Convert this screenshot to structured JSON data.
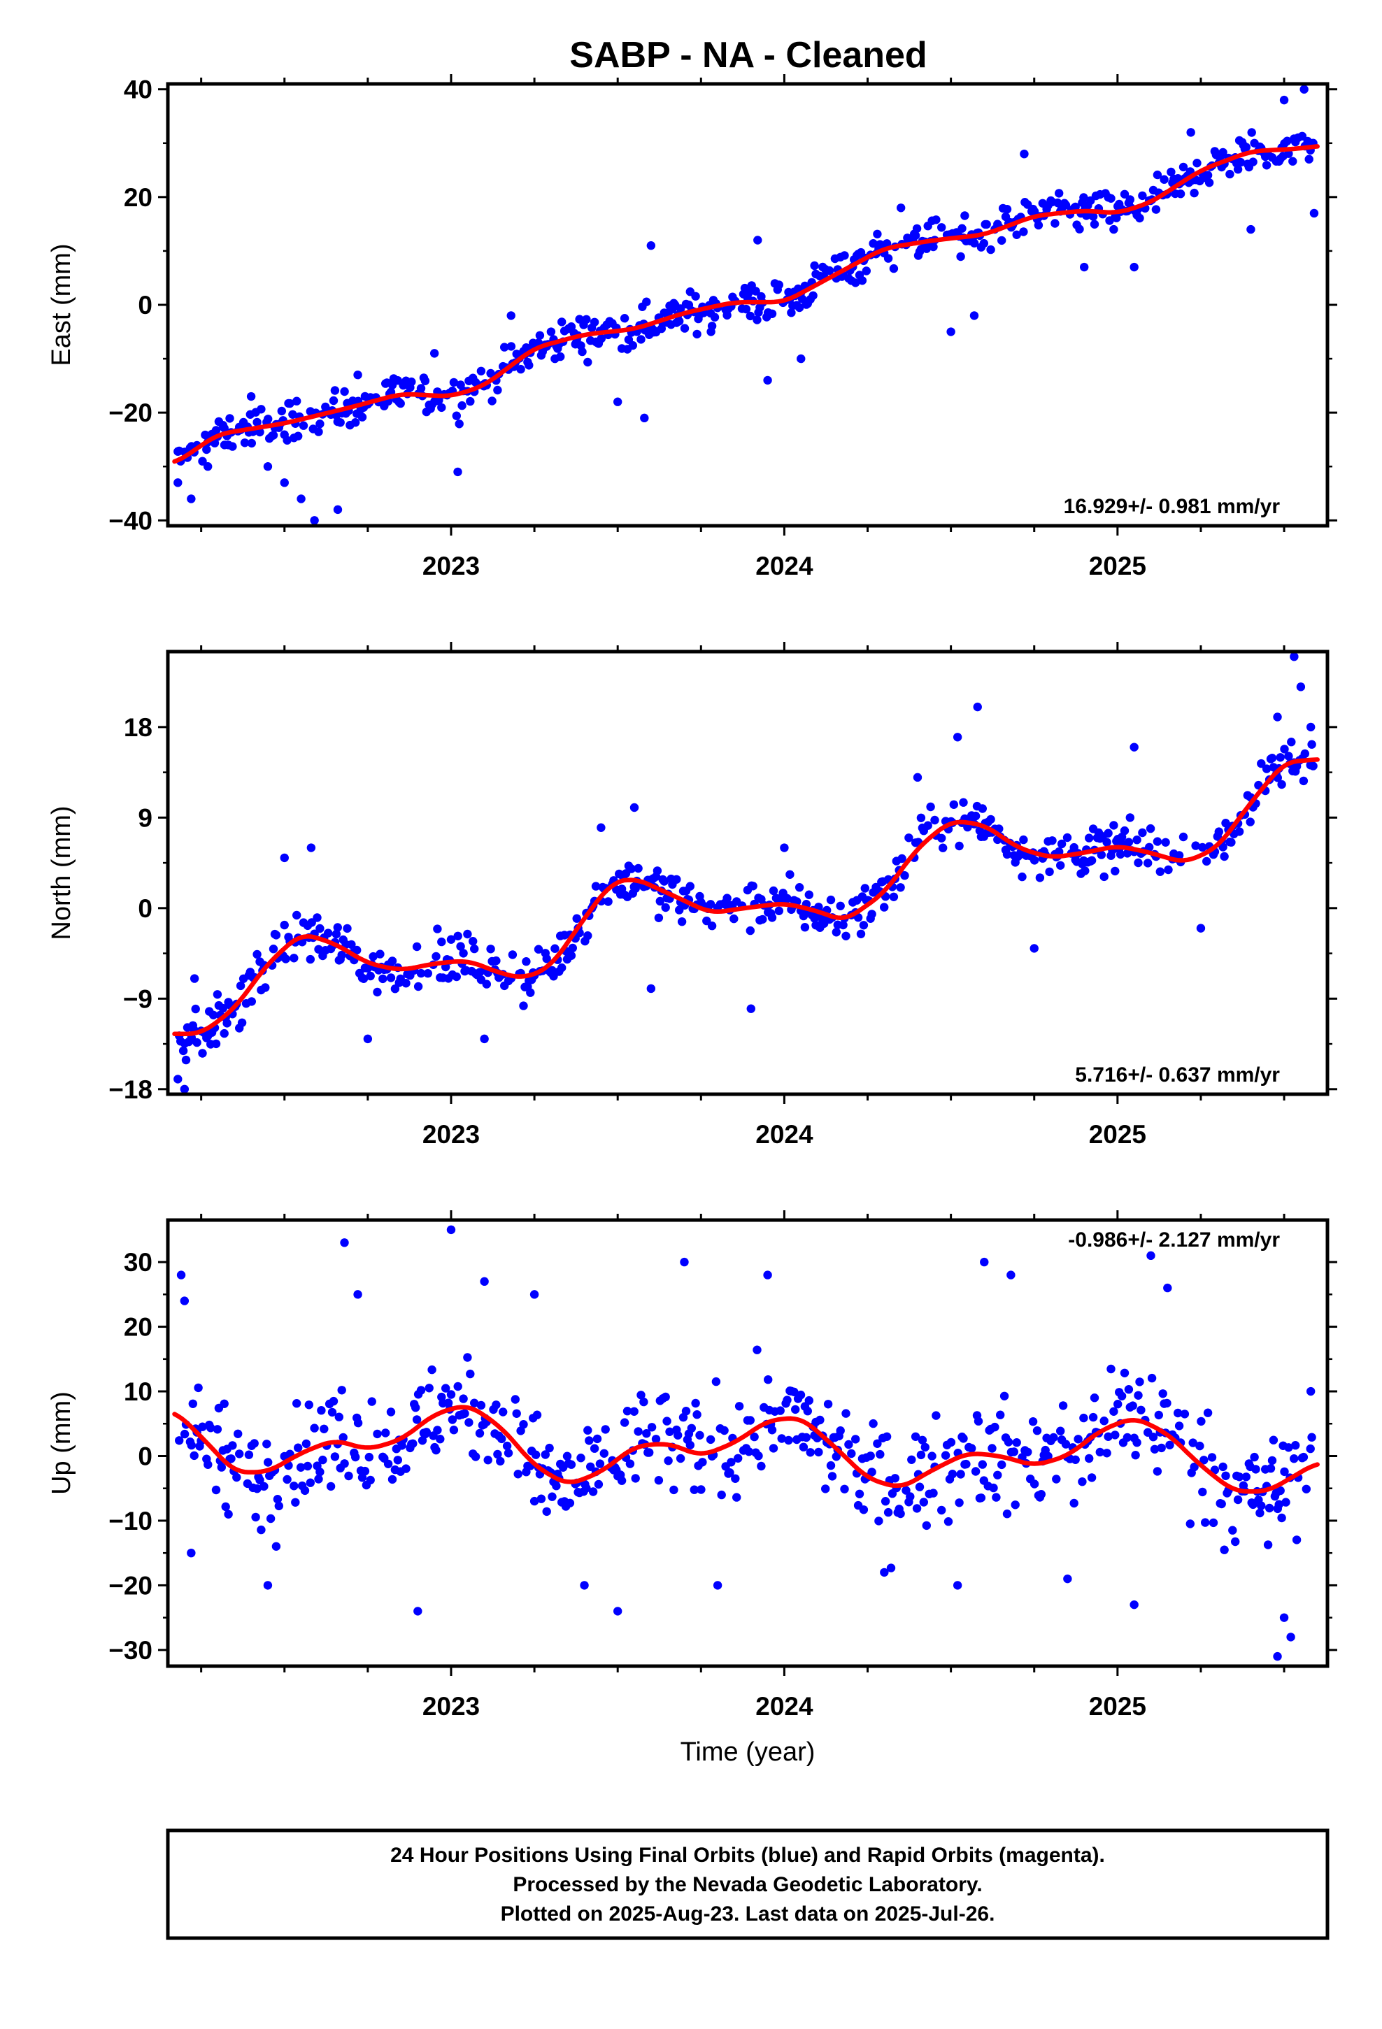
{
  "title": "SABP  - NA - Cleaned",
  "colors": {
    "points": "#0000ff",
    "fit": "#ff0000",
    "frame": "#000000"
  },
  "chart_data": [
    {
      "type": "scatter",
      "component": "east",
      "ylabel": "East (mm)",
      "xlabel": "",
      "xlim": [
        2022.15,
        2025.63
      ],
      "ylim": [
        -41,
        41
      ],
      "yticks": [
        "-40",
        "-20",
        "0",
        "20",
        "40"
      ],
      "ytick_values": [
        -40,
        -20,
        0,
        20,
        40
      ],
      "xticks": [
        "2023",
        "2024",
        "2025"
      ],
      "xtick_values": [
        2023,
        2024,
        2025
      ],
      "rate_label": "16.929+/- 0.981 mm/yr",
      "rate_position": "bottom-right",
      "fit": {
        "x": [
          2022.17,
          2022.3,
          2022.5,
          2022.7,
          2022.85,
          2023.0,
          2023.1,
          2023.25,
          2023.4,
          2023.55,
          2023.7,
          2023.85,
          2024.0,
          2024.15,
          2024.3,
          2024.45,
          2024.6,
          2024.75,
          2024.9,
          2025.0,
          2025.1,
          2025.25,
          2025.4,
          2025.55,
          2025.6
        ],
        "y": [
          -29.5,
          -24,
          -22,
          -19,
          -16.5,
          -17,
          -15,
          -8,
          -5.5,
          -4.5,
          -1.5,
          0.5,
          0.5,
          5.5,
          10.5,
          12,
          13,
          16.5,
          17.5,
          17,
          19,
          25,
          28.5,
          29,
          29.5
        ]
      },
      "noise_amplitude": 3.5,
      "points": [
        {
          "x": 2022.18,
          "y": -33
        },
        {
          "x": 2022.22,
          "y": -36
        },
        {
          "x": 2022.27,
          "y": -30
        },
        {
          "x": 2022.32,
          "y": -26
        },
        {
          "x": 2022.4,
          "y": -17
        },
        {
          "x": 2022.45,
          "y": -30
        },
        {
          "x": 2022.5,
          "y": -33
        },
        {
          "x": 2022.55,
          "y": -36
        },
        {
          "x": 2022.59,
          "y": -40
        },
        {
          "x": 2022.66,
          "y": -38
        },
        {
          "x": 2022.72,
          "y": -13
        },
        {
          "x": 2022.95,
          "y": -9
        },
        {
          "x": 2023.02,
          "y": -31
        },
        {
          "x": 2023.18,
          "y": -2
        },
        {
          "x": 2023.3,
          "y": -5
        },
        {
          "x": 2023.5,
          "y": -18
        },
        {
          "x": 2023.58,
          "y": -21
        },
        {
          "x": 2023.6,
          "y": 11
        },
        {
          "x": 2023.78,
          "y": -5
        },
        {
          "x": 2023.92,
          "y": 12
        },
        {
          "x": 2023.95,
          "y": -14
        },
        {
          "x": 2024.05,
          "y": -10
        },
        {
          "x": 2024.35,
          "y": 18
        },
        {
          "x": 2024.5,
          "y": -5
        },
        {
          "x": 2024.57,
          "y": -2
        },
        {
          "x": 2024.72,
          "y": 28
        },
        {
          "x": 2024.9,
          "y": 7
        },
        {
          "x": 2025.05,
          "y": 7
        },
        {
          "x": 2025.22,
          "y": 32
        },
        {
          "x": 2025.4,
          "y": 14
        },
        {
          "x": 2025.5,
          "y": 38
        },
        {
          "x": 2025.56,
          "y": 40
        },
        {
          "x": 2025.59,
          "y": 17
        }
      ]
    },
    {
      "type": "scatter",
      "component": "north",
      "ylabel": "North (mm)",
      "xlabel": "",
      "xlim": [
        2022.15,
        2025.63
      ],
      "ylim": [
        -18.5,
        25.5
      ],
      "yticks": [
        "-18",
        "-9",
        "0",
        "9",
        "18"
      ],
      "ytick_values": [
        -18,
        -9,
        0,
        9,
        18
      ],
      "xticks": [
        "2023",
        "2024",
        "2025"
      ],
      "xtick_values": [
        2023,
        2024,
        2025
      ],
      "rate_label": "5.716+/- 0.637 mm/yr",
      "rate_position": "bottom-right",
      "fit": {
        "x": [
          2022.17,
          2022.25,
          2022.35,
          2022.45,
          2022.55,
          2022.65,
          2022.75,
          2022.85,
          2022.95,
          2023.05,
          2023.15,
          2023.22,
          2023.3,
          2023.4,
          2023.48,
          2023.55,
          2023.65,
          2023.78,
          2023.88,
          2024.0,
          2024.1,
          2024.18,
          2024.3,
          2024.4,
          2024.5,
          2024.6,
          2024.7,
          2024.8,
          2024.9,
          2025.0,
          2025.1,
          2025.2,
          2025.3,
          2025.4,
          2025.5,
          2025.6
        ],
        "y": [
          -12.5,
          -12.5,
          -10,
          -5.5,
          -2.5,
          -3.5,
          -5.5,
          -6.2,
          -5.5,
          -5.2,
          -6.5,
          -7,
          -5.8,
          -1,
          2.5,
          3,
          1.5,
          -0.5,
          0,
          0.5,
          -0.3,
          -1.3,
          1.5,
          6,
          8.7,
          8.3,
          6,
          5,
          5.5,
          6.2,
          5.5,
          4.5,
          6,
          10.5,
          14.5,
          14.8
        ]
      },
      "noise_amplitude": 2.3,
      "points": [
        {
          "x": 2022.18,
          "y": -17
        },
        {
          "x": 2022.2,
          "y": -18
        },
        {
          "x": 2022.23,
          "y": -7
        },
        {
          "x": 2022.5,
          "y": 5
        },
        {
          "x": 2022.58,
          "y": 6
        },
        {
          "x": 2022.75,
          "y": -13
        },
        {
          "x": 2023.1,
          "y": -13
        },
        {
          "x": 2023.45,
          "y": 8
        },
        {
          "x": 2023.55,
          "y": 10
        },
        {
          "x": 2023.6,
          "y": -8
        },
        {
          "x": 2023.9,
          "y": -10
        },
        {
          "x": 2024.0,
          "y": 6
        },
        {
          "x": 2024.4,
          "y": 13
        },
        {
          "x": 2024.52,
          "y": 17
        },
        {
          "x": 2024.58,
          "y": 20
        },
        {
          "x": 2024.75,
          "y": -4
        },
        {
          "x": 2025.05,
          "y": 16
        },
        {
          "x": 2025.25,
          "y": -2
        },
        {
          "x": 2025.4,
          "y": 11
        },
        {
          "x": 2025.48,
          "y": 19
        },
        {
          "x": 2025.53,
          "y": 25
        },
        {
          "x": 2025.55,
          "y": 22
        },
        {
          "x": 2025.58,
          "y": 18
        }
      ]
    },
    {
      "type": "scatter",
      "component": "up",
      "ylabel": "Up (mm)",
      "xlabel": "Time (year)",
      "xlim": [
        2022.15,
        2025.63
      ],
      "ylim": [
        -32.5,
        36.5
      ],
      "yticks": [
        "-30",
        "-20",
        "-10",
        "0",
        "10",
        "20",
        "30"
      ],
      "ytick_values": [
        -30,
        -20,
        -10,
        0,
        10,
        20,
        30
      ],
      "xticks": [
        "2023",
        "2024",
        "2025"
      ],
      "xtick_values": [
        2023,
        2024,
        2025
      ],
      "rate_label": "-0.986+/- 2.127 mm/yr",
      "rate_position": "top-right",
      "fit": {
        "x": [
          2022.17,
          2022.25,
          2022.35,
          2022.45,
          2022.55,
          2022.65,
          2022.75,
          2022.85,
          2022.95,
          2023.05,
          2023.15,
          2023.25,
          2023.35,
          2023.45,
          2023.55,
          2023.65,
          2023.75,
          2023.85,
          2023.95,
          2024.05,
          2024.15,
          2024.25,
          2024.35,
          2024.45,
          2024.55,
          2024.65,
          2024.75,
          2024.85,
          2024.95,
          2025.05,
          2025.15,
          2025.25,
          2025.35,
          2025.45,
          2025.55,
          2025.6
        ],
        "y": [
          7,
          3,
          -2.5,
          -2.5,
          0.5,
          2.5,
          1,
          2.5,
          6.5,
          8,
          4.5,
          -1.5,
          -4.5,
          -2.5,
          1.5,
          2,
          0,
          2,
          5.5,
          6,
          1.5,
          -3.5,
          -5,
          -2,
          0.5,
          0,
          -1.5,
          0,
          4,
          6,
          3.5,
          -1.5,
          -5.5,
          -5.5,
          -2.5,
          -1
        ]
      },
      "noise_amplitude": 8,
      "points": [
        {
          "x": 2022.19,
          "y": 28
        },
        {
          "x": 2022.2,
          "y": 24
        },
        {
          "x": 2022.22,
          "y": -15
        },
        {
          "x": 2022.45,
          "y": -20
        },
        {
          "x": 2022.68,
          "y": 33
        },
        {
          "x": 2022.72,
          "y": 25
        },
        {
          "x": 2022.9,
          "y": -24
        },
        {
          "x": 2023.0,
          "y": 35
        },
        {
          "x": 2023.1,
          "y": 27
        },
        {
          "x": 2023.25,
          "y": 25
        },
        {
          "x": 2023.4,
          "y": -20
        },
        {
          "x": 2023.5,
          "y": -24
        },
        {
          "x": 2023.7,
          "y": 30
        },
        {
          "x": 2023.8,
          "y": -20
        },
        {
          "x": 2023.95,
          "y": 28
        },
        {
          "x": 2024.3,
          "y": -18
        },
        {
          "x": 2024.52,
          "y": -20
        },
        {
          "x": 2024.6,
          "y": 30
        },
        {
          "x": 2024.68,
          "y": 28
        },
        {
          "x": 2024.85,
          "y": -19
        },
        {
          "x": 2025.05,
          "y": -23
        },
        {
          "x": 2025.1,
          "y": 31
        },
        {
          "x": 2025.15,
          "y": 26
        },
        {
          "x": 2025.5,
          "y": -25
        },
        {
          "x": 2025.52,
          "y": -28
        },
        {
          "x": 2025.48,
          "y": -31
        },
        {
          "x": 2025.58,
          "y": 10
        }
      ]
    }
  ],
  "footer": {
    "line1": "24 Hour Positions Using Final Orbits (blue) and Rapid Orbits (magenta).",
    "line2": "Processed by the Nevada Geodetic Laboratory.",
    "line3": "Plotted on 2025-Aug-23. Last data on 2025-Jul-26."
  }
}
